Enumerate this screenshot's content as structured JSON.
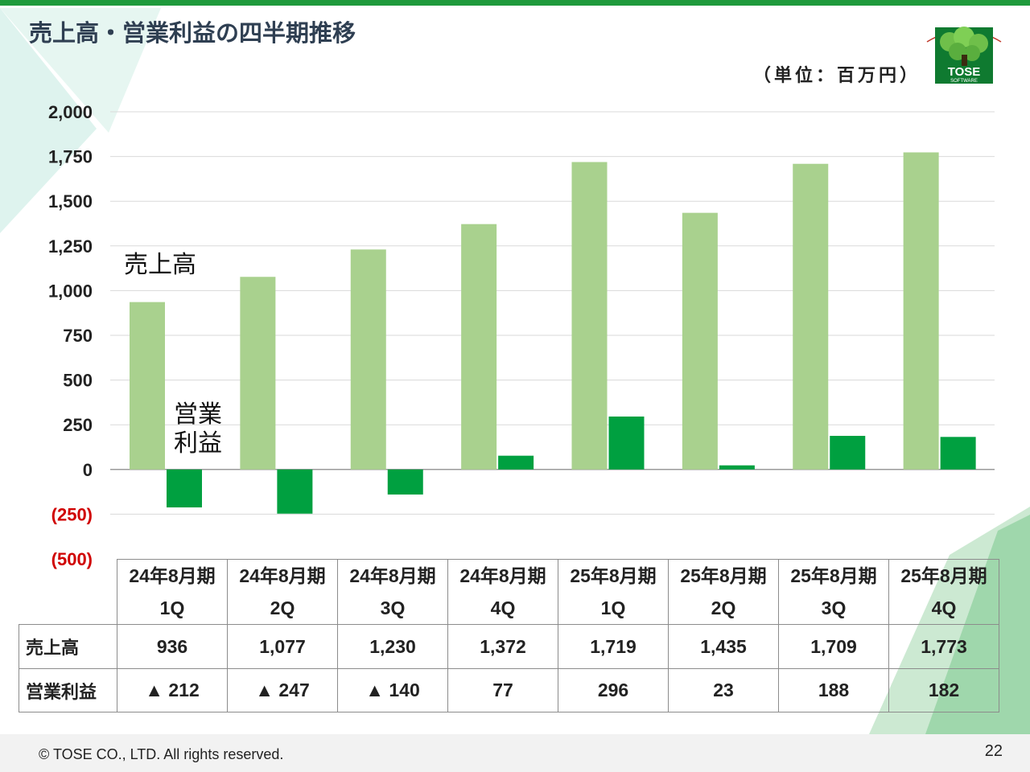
{
  "slide": {
    "title": "売上高・営業利益の四半期推移",
    "unit": "（単位：百万円）",
    "logo_text_1": "TOSE",
    "logo_text_2": "SOFTWARE",
    "footer": "© TOSE CO., LTD. All rights reserved.",
    "page_number": "22"
  },
  "colors": {
    "sales_bar": "#a9d18e",
    "profit_bar": "#00a040",
    "negative_tick": "#d00000",
    "accent": "#1f9a3c"
  },
  "chart_data": {
    "type": "bar",
    "categories": [
      "24年8月期 1Q",
      "24年8月期 2Q",
      "24年8月期 3Q",
      "24年8月期 4Q",
      "25年8月期 1Q",
      "25年8月期 2Q",
      "25年8月期 3Q",
      "25年8月期 4Q"
    ],
    "category_lines": [
      [
        "24年8月期",
        "1Q"
      ],
      [
        "24年8月期",
        "2Q"
      ],
      [
        "24年8月期",
        "3Q"
      ],
      [
        "24年8月期",
        "4Q"
      ],
      [
        "25年8月期",
        "1Q"
      ],
      [
        "25年8月期",
        "2Q"
      ],
      [
        "25年8月期",
        "3Q"
      ],
      [
        "25年8月期",
        "4Q"
      ]
    ],
    "series": [
      {
        "name": "売上高",
        "label_lines": [
          "売上高"
        ],
        "values": [
          936,
          1077,
          1230,
          1372,
          1719,
          1435,
          1709,
          1773
        ]
      },
      {
        "name": "営業利益",
        "label_lines": [
          "営業",
          "利益"
        ],
        "values": [
          -212,
          -247,
          -140,
          77,
          296,
          23,
          188,
          182
        ]
      }
    ],
    "ylim": [
      -500,
      2000
    ],
    "yticks": [
      2000,
      1750,
      1500,
      1250,
      1000,
      750,
      500,
      250,
      0,
      -250,
      -500
    ],
    "ytick_labels": [
      "2,000",
      "1,750",
      "1,500",
      "1,250",
      "1,000",
      "750",
      "500",
      "250",
      "0",
      "(250)",
      "(500)"
    ],
    "grid": true,
    "table": {
      "rows": [
        {
          "label": "売上高",
          "cells": [
            "936",
            "1,077",
            "1,230",
            "1,372",
            "1,719",
            "1,435",
            "1,709",
            "1,773"
          ]
        },
        {
          "label": "営業利益",
          "cells": [
            "▲ 212",
            "▲ 247",
            "▲ 140",
            "77",
            "296",
            "23",
            "188",
            "182"
          ]
        }
      ]
    }
  }
}
